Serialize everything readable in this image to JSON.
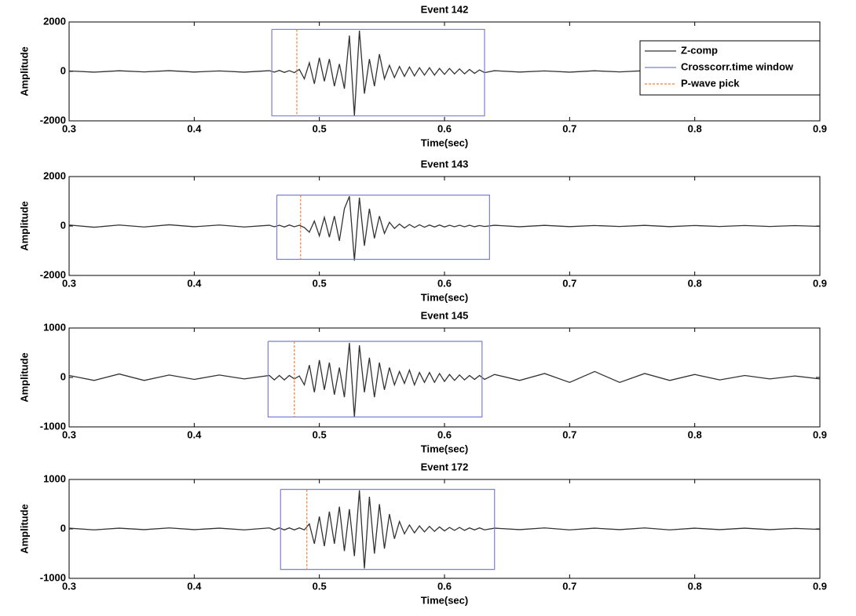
{
  "chart_data": [
    {
      "type": "line",
      "title": "Event 142",
      "x_label": "Time(sec)",
      "y_label": "Amplitude",
      "xlim": [
        0.3,
        0.9
      ],
      "xticks": [
        0.3,
        0.4,
        0.5,
        0.6,
        0.7,
        0.8,
        0.9
      ],
      "ylim": [
        -2000,
        2000
      ],
      "yticks": [
        -2000,
        0,
        2000
      ],
      "legend": "upper right",
      "series": [
        {
          "name": "Z-comp",
          "color": "#333333",
          "x": [
            0.3,
            0.32,
            0.34,
            0.36,
            0.38,
            0.4,
            0.42,
            0.44,
            0.46,
            0.464,
            0.468,
            0.472,
            0.476,
            0.48,
            0.484,
            0.488,
            0.492,
            0.496,
            0.5,
            0.504,
            0.508,
            0.512,
            0.516,
            0.52,
            0.524,
            0.528,
            0.532,
            0.536,
            0.54,
            0.544,
            0.548,
            0.552,
            0.556,
            0.56,
            0.564,
            0.568,
            0.572,
            0.576,
            0.58,
            0.584,
            0.588,
            0.592,
            0.596,
            0.6,
            0.604,
            0.608,
            0.612,
            0.616,
            0.62,
            0.624,
            0.628,
            0.632,
            0.64,
            0.66,
            0.68,
            0.7,
            0.72,
            0.74,
            0.76,
            0.78,
            0.8,
            0.82,
            0.84,
            0.86,
            0.88,
            0.9
          ],
          "values": [
            20,
            -30,
            25,
            -20,
            30,
            -25,
            20,
            -30,
            30,
            -30,
            40,
            -40,
            30,
            -50,
            80,
            -300,
            350,
            -500,
            550,
            -400,
            500,
            -600,
            300,
            -700,
            1450,
            -1800,
            1650,
            -900,
            500,
            -600,
            700,
            -300,
            250,
            -250,
            200,
            -200,
            180,
            -180,
            150,
            -150,
            150,
            -150,
            120,
            -120,
            120,
            -100,
            100,
            -100,
            80,
            -80,
            60,
            -50,
            30,
            -25,
            20,
            -30,
            25,
            -20,
            30,
            -25,
            20,
            -30,
            25,
            -20,
            20,
            -15
          ]
        },
        {
          "name": "Crosscorr.time window",
          "color": "#7b7fd6",
          "x": [
            0.462,
            0.632,
            0.632,
            0.462,
            0.462
          ],
          "values": [
            1700,
            1700,
            -1800,
            -1800,
            1700
          ]
        },
        {
          "name": "P-wave pick",
          "color": "#f07f3c",
          "dashed": true,
          "x": [
            0.482,
            0.482
          ],
          "values": [
            1700,
            -1800
          ]
        }
      ]
    },
    {
      "type": "line",
      "title": "Event 143",
      "x_label": "Time(sec)",
      "y_label": "Amplitude",
      "xlim": [
        0.3,
        0.9
      ],
      "xticks": [
        0.3,
        0.4,
        0.5,
        0.6,
        0.7,
        0.8,
        0.9
      ],
      "ylim": [
        -2000,
        2000
      ],
      "yticks": [
        -2000,
        0,
        2000
      ],
      "series": [
        {
          "color": "#333333",
          "x": [
            0.3,
            0.32,
            0.34,
            0.36,
            0.38,
            0.4,
            0.42,
            0.44,
            0.46,
            0.464,
            0.468,
            0.472,
            0.476,
            0.48,
            0.484,
            0.488,
            0.492,
            0.496,
            0.5,
            0.504,
            0.508,
            0.512,
            0.516,
            0.52,
            0.524,
            0.528,
            0.532,
            0.536,
            0.54,
            0.544,
            0.548,
            0.552,
            0.556,
            0.56,
            0.564,
            0.568,
            0.572,
            0.576,
            0.58,
            0.584,
            0.588,
            0.592,
            0.596,
            0.6,
            0.604,
            0.608,
            0.612,
            0.616,
            0.62,
            0.624,
            0.628,
            0.632,
            0.64,
            0.66,
            0.68,
            0.7,
            0.72,
            0.74,
            0.76,
            0.78,
            0.8,
            0.82,
            0.84,
            0.86,
            0.88,
            0.9
          ],
          "values": [
            40,
            -50,
            40,
            -40,
            50,
            -30,
            40,
            -40,
            30,
            -30,
            30,
            -40,
            40,
            -30,
            30,
            -60,
            -250,
            200,
            -400,
            350,
            -450,
            400,
            -600,
            700,
            1200,
            -1400,
            1150,
            -800,
            700,
            -500,
            400,
            -300,
            150,
            -100,
            80,
            -80,
            60,
            -60,
            50,
            -50,
            40,
            -40,
            40,
            -40,
            30,
            -30,
            30,
            -30,
            30,
            -30,
            20,
            -20,
            30,
            -30,
            25,
            -25,
            20,
            -20,
            25,
            -25,
            20,
            -20,
            20,
            -20,
            15,
            -15
          ]
        },
        {
          "color": "#7b7fd6",
          "x": [
            0.466,
            0.636,
            0.636,
            0.466,
            0.466
          ],
          "values": [
            1250,
            1250,
            -1350,
            -1350,
            1250
          ]
        },
        {
          "color": "#f07f3c",
          "dashed": true,
          "x": [
            0.485,
            0.485
          ],
          "values": [
            1250,
            -1350
          ]
        }
      ]
    },
    {
      "type": "line",
      "title": "Event 145",
      "x_label": "Time(sec)",
      "y_label": "Amplitude",
      "xlim": [
        0.3,
        0.9
      ],
      "xticks": [
        0.3,
        0.4,
        0.5,
        0.6,
        0.7,
        0.8,
        0.9
      ],
      "ylim": [
        -1000,
        1000
      ],
      "yticks": [
        -1000,
        0,
        1000
      ],
      "series": [
        {
          "color": "#333333",
          "x": [
            0.3,
            0.32,
            0.34,
            0.36,
            0.38,
            0.4,
            0.42,
            0.44,
            0.46,
            0.464,
            0.468,
            0.472,
            0.476,
            0.48,
            0.484,
            0.488,
            0.492,
            0.496,
            0.5,
            0.504,
            0.508,
            0.512,
            0.516,
            0.52,
            0.524,
            0.528,
            0.532,
            0.536,
            0.54,
            0.544,
            0.548,
            0.552,
            0.556,
            0.56,
            0.564,
            0.568,
            0.572,
            0.576,
            0.58,
            0.584,
            0.588,
            0.592,
            0.596,
            0.6,
            0.604,
            0.608,
            0.612,
            0.616,
            0.62,
            0.624,
            0.628,
            0.632,
            0.64,
            0.66,
            0.68,
            0.7,
            0.72,
            0.74,
            0.76,
            0.78,
            0.8,
            0.82,
            0.84,
            0.86,
            0.88,
            0.9
          ],
          "values": [
            40,
            -60,
            70,
            -60,
            50,
            -40,
            50,
            -30,
            40,
            -50,
            40,
            -50,
            40,
            -30,
            30,
            -150,
            250,
            -300,
            350,
            -250,
            300,
            -350,
            200,
            -400,
            700,
            -800,
            650,
            -300,
            400,
            -400,
            300,
            -250,
            200,
            -150,
            120,
            -120,
            150,
            -150,
            100,
            -100,
            100,
            -100,
            80,
            -80,
            60,
            -60,
            50,
            -50,
            40,
            -40,
            40,
            -40,
            60,
            -60,
            80,
            -100,
            120,
            -100,
            80,
            -60,
            60,
            -50,
            40,
            -30,
            30,
            -30
          ]
        },
        {
          "color": "#7b7fd6",
          "x": [
            0.459,
            0.63,
            0.63,
            0.459,
            0.459
          ],
          "values": [
            730,
            730,
            -800,
            -800,
            730
          ]
        },
        {
          "color": "#f07f3c",
          "dashed": true,
          "x": [
            0.48,
            0.48
          ],
          "values": [
            730,
            -800
          ]
        }
      ]
    },
    {
      "type": "line",
      "title": "Event 172",
      "x_label": "Time(sec)",
      "y_label": "Amplitude",
      "xlim": [
        0.3,
        0.9
      ],
      "xticks": [
        0.3,
        0.4,
        0.5,
        0.6,
        0.7,
        0.8,
        0.9
      ],
      "ylim": [
        -1000,
        1000
      ],
      "yticks": [
        -1000,
        0,
        1000
      ],
      "series": [
        {
          "color": "#333333",
          "x": [
            0.3,
            0.32,
            0.34,
            0.36,
            0.38,
            0.4,
            0.42,
            0.44,
            0.46,
            0.464,
            0.468,
            0.472,
            0.476,
            0.48,
            0.484,
            0.488,
            0.492,
            0.496,
            0.5,
            0.504,
            0.508,
            0.512,
            0.516,
            0.52,
            0.524,
            0.528,
            0.532,
            0.536,
            0.54,
            0.544,
            0.548,
            0.552,
            0.556,
            0.56,
            0.564,
            0.568,
            0.572,
            0.576,
            0.58,
            0.584,
            0.588,
            0.592,
            0.596,
            0.6,
            0.604,
            0.608,
            0.612,
            0.616,
            0.62,
            0.624,
            0.628,
            0.632,
            0.64,
            0.66,
            0.68,
            0.7,
            0.72,
            0.74,
            0.76,
            0.78,
            0.8,
            0.82,
            0.84,
            0.86,
            0.88,
            0.9
          ],
          "values": [
            15,
            -20,
            15,
            -15,
            20,
            -15,
            15,
            -20,
            20,
            -20,
            20,
            -20,
            20,
            -20,
            20,
            -20,
            100,
            -300,
            250,
            -350,
            350,
            -300,
            450,
            -450,
            400,
            -550,
            780,
            -800,
            650,
            -500,
            500,
            -400,
            300,
            -200,
            150,
            -100,
            80,
            -80,
            60,
            -60,
            50,
            -50,
            40,
            -40,
            30,
            -30,
            30,
            -30,
            20,
            -20,
            20,
            -20,
            15,
            -15,
            20,
            -20,
            15,
            -15,
            20,
            -20,
            15,
            -15,
            15,
            -15,
            10,
            -10
          ]
        },
        {
          "color": "#7b7fd6",
          "x": [
            0.469,
            0.64,
            0.64,
            0.469,
            0.469
          ],
          "values": [
            800,
            800,
            -820,
            -820,
            800
          ]
        },
        {
          "color": "#f07f3c",
          "dashed": true,
          "x": [
            0.49,
            0.49
          ],
          "values": [
            800,
            -820
          ]
        }
      ]
    }
  ]
}
